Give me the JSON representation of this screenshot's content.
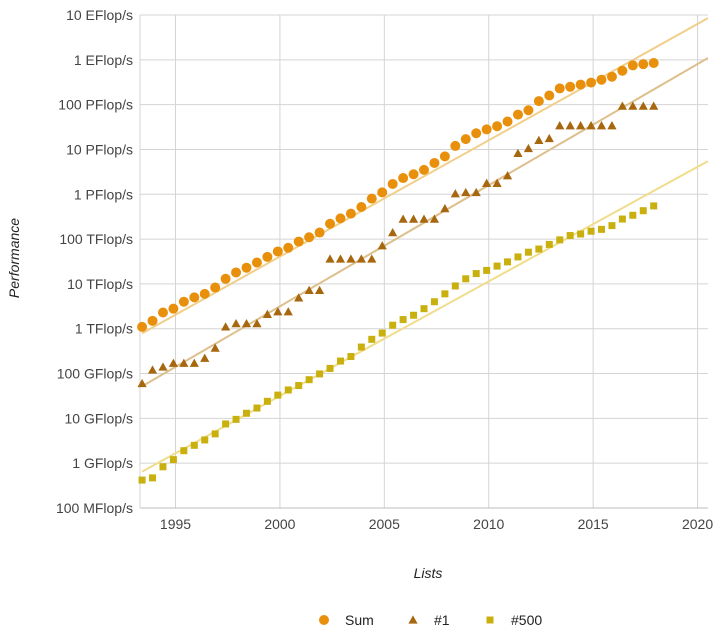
{
  "chart_data": {
    "type": "scatter",
    "title": "",
    "xlabel": "Lists",
    "ylabel": "Performance",
    "y_scale": "log",
    "xlim": [
      1993.3,
      2020.5
    ],
    "ylim_flops": [
      100000000.0,
      1e+19
    ],
    "x_ticks": [
      1995,
      2000,
      2005,
      2010,
      2015,
      2020
    ],
    "y_ticks": [
      {
        "value": 100000000.0,
        "label": "100 MFlop/s"
      },
      {
        "value": 1000000000.0,
        "label": "1 GFlop/s"
      },
      {
        "value": 10000000000.0,
        "label": "10 GFlop/s"
      },
      {
        "value": 100000000000.0,
        "label": "100 GFlop/s"
      },
      {
        "value": 1000000000000.0,
        "label": "1 TFlop/s"
      },
      {
        "value": 10000000000000.0,
        "label": "10 TFlop/s"
      },
      {
        "value": 100000000000000.0,
        "label": "100 TFlop/s"
      },
      {
        "value": 1000000000000000.0,
        "label": "1 PFlop/s"
      },
      {
        "value": 1e+16,
        "label": "10 PFlop/s"
      },
      {
        "value": 1e+17,
        "label": "100 PFlop/s"
      },
      {
        "value": 1e+18,
        "label": "1 EFlop/s"
      },
      {
        "value": 1e+19,
        "label": "10 EFlop/s"
      }
    ],
    "grid": true,
    "legend_position": "bottom-center",
    "series": [
      {
        "name": "Sum",
        "marker": "circle",
        "color": "#e8900c",
        "trend_color": "#f1cf8a",
        "trend": {
          "x": [
            1993.4,
            2020.5
          ],
          "y": [
            790000000000.0,
            8.5e+18
          ]
        },
        "x": [
          1993.4,
          1993.9,
          1994.4,
          1994.9,
          1995.4,
          1995.9,
          1996.4,
          1996.9,
          1997.4,
          1997.9,
          1998.4,
          1998.9,
          1999.4,
          1999.9,
          2000.4,
          2000.9,
          2001.4,
          2001.9,
          2002.4,
          2002.9,
          2003.4,
          2003.9,
          2004.4,
          2004.9,
          2005.4,
          2005.9,
          2006.4,
          2006.9,
          2007.4,
          2007.9,
          2008.4,
          2008.9,
          2009.4,
          2009.9,
          2010.4,
          2010.9,
          2011.4,
          2011.9,
          2012.4,
          2012.9,
          2013.4,
          2013.9,
          2014.4,
          2014.9,
          2015.4,
          2015.9,
          2016.4,
          2016.9,
          2017.4,
          2017.9
        ],
        "y": [
          1100000000000.0,
          1500000000000.0,
          2300000000000.0,
          2800000000000.0,
          4000000000000.0,
          5000000000000.0,
          6000000000000.0,
          8300000000000.0,
          13000000000000.0,
          18000000000000.0,
          23000000000000.0,
          30000000000000.0,
          40000000000000.0,
          53000000000000.0,
          64000000000000.0,
          88000000000000.0,
          110000000000000.0,
          140000000000000.0,
          220000000000000.0,
          290000000000000.0,
          370000000000000.0,
          520000000000000.0,
          800000000000000.0,
          1100000000000000.0,
          1700000000000000.0,
          2300000000000000.0,
          2800000000000000.0,
          3500000000000000.0,
          5000000000000000.0,
          7000000000000000.0,
          1.2e+16,
          1.7e+16,
          2.3e+16,
          2.8e+16,
          3.3e+16,
          4.2e+16,
          6e+16,
          7.5e+16,
          1.2e+17,
          1.6e+17,
          2.3e+17,
          2.5e+17,
          2.8e+17,
          3.1e+17,
          3.6e+17,
          4.2e+17,
          5.7e+17,
          7.5e+17,
          8e+17,
          8.5e+17
        ]
      },
      {
        "name": "#1",
        "marker": "triangle",
        "color": "#a6670f",
        "trend_color": "#ddbf8c",
        "trend": {
          "x": [
            1993.4,
            2020.5
          ],
          "y": [
            52000000000.0,
            1.1e+18
          ]
        },
        "x": [
          1993.4,
          1993.9,
          1994.4,
          1994.9,
          1995.4,
          1995.9,
          1996.4,
          1996.9,
          1997.4,
          1997.9,
          1998.4,
          1998.9,
          1999.4,
          1999.9,
          2000.4,
          2000.9,
          2001.4,
          2001.9,
          2002.4,
          2002.9,
          2003.4,
          2003.9,
          2004.4,
          2004.9,
          2005.4,
          2005.9,
          2006.4,
          2006.9,
          2007.4,
          2007.9,
          2008.4,
          2008.9,
          2009.4,
          2009.9,
          2010.4,
          2010.9,
          2011.4,
          2011.9,
          2012.4,
          2012.9,
          2013.4,
          2013.9,
          2014.4,
          2014.9,
          2015.4,
          2015.9,
          2016.4,
          2016.9,
          2017.4,
          2017.9
        ],
        "y": [
          60000000000.0,
          120000000000.0,
          140000000000.0,
          170000000000.0,
          170000000000.0,
          170000000000.0,
          220000000000.0,
          370000000000.0,
          1100000000000.0,
          1300000000000.0,
          1300000000000.0,
          1300000000000.0,
          2100000000000.0,
          2400000000000.0,
          2400000000000.0,
          4900000000000.0,
          7200000000000.0,
          7200000000000.0,
          36000000000000.0,
          36000000000000.0,
          36000000000000.0,
          36000000000000.0,
          36000000000000.0,
          71000000000000.0,
          140000000000000.0,
          280000000000000.0,
          280000000000000.0,
          280000000000000.0,
          280000000000000.0,
          480000000000000.0,
          1030000000000000.0,
          1100000000000000.0,
          1100000000000000.0,
          1760000000000000.0,
          1760000000000000.0,
          2600000000000000.0,
          8200000000000000.0,
          1.05e+16,
          1.6e+16,
          1.76e+16,
          3.4e+16,
          3.4e+16,
          3.4e+16,
          3.4e+16,
          3.4e+16,
          3.4e+16,
          9.3e+16,
          9.3e+16,
          9.3e+16,
          9.3e+16
        ]
      },
      {
        "name": "#500",
        "marker": "square",
        "color": "#c9b00e",
        "trend_color": "#f0dc8a",
        "trend": {
          "x": [
            1993.4,
            2020.5
          ],
          "y": [
            650000000.0,
            5500000000000000.0
          ]
        },
        "x": [
          1993.4,
          1993.9,
          1994.4,
          1994.9,
          1995.4,
          1995.9,
          1996.4,
          1996.9,
          1997.4,
          1997.9,
          1998.4,
          1998.9,
          1999.4,
          1999.9,
          2000.4,
          2000.9,
          2001.4,
          2001.9,
          2002.4,
          2002.9,
          2003.4,
          2003.9,
          2004.4,
          2004.9,
          2005.4,
          2005.9,
          2006.4,
          2006.9,
          2007.4,
          2007.9,
          2008.4,
          2008.9,
          2009.4,
          2009.9,
          2010.4,
          2010.9,
          2011.4,
          2011.9,
          2012.4,
          2012.9,
          2013.4,
          2013.9,
          2014.4,
          2014.9,
          2015.4,
          2015.9,
          2016.4,
          2016.9,
          2017.4,
          2017.9
        ],
        "y": [
          420000000.0,
          470000000.0,
          830000000.0,
          1200000000.0,
          1900000000.0,
          2500000000.0,
          3300000000.0,
          4500000000.0,
          7500000000.0,
          9500000000.0,
          13000000000.0,
          17000000000.0,
          24000000000.0,
          33000000000.0,
          43000000000.0,
          54000000000.0,
          73000000000.0,
          98000000000.0,
          130000000000.0,
          190000000000.0,
          240000000000.0,
          390000000000.0,
          580000000000.0,
          800000000000.0,
          1200000000000.0,
          1600000000000.0,
          2000000000000.0,
          2800000000000.0,
          4000000000000.0,
          6000000000000.0,
          9000000000000.0,
          13000000000000.0,
          17000000000000.0,
          20000000000000.0,
          25000000000000.0,
          31000000000000.0,
          40000000000000.0,
          51000000000000.0,
          60000000000000.0,
          76000000000000.0,
          96000000000000.0,
          120000000000000.0,
          130000000000000.0,
          150000000000000.0,
          165000000000000.0,
          200000000000000.0,
          280000000000000.0,
          340000000000000.0,
          430000000000000.0,
          550000000000000.0
        ]
      }
    ]
  }
}
